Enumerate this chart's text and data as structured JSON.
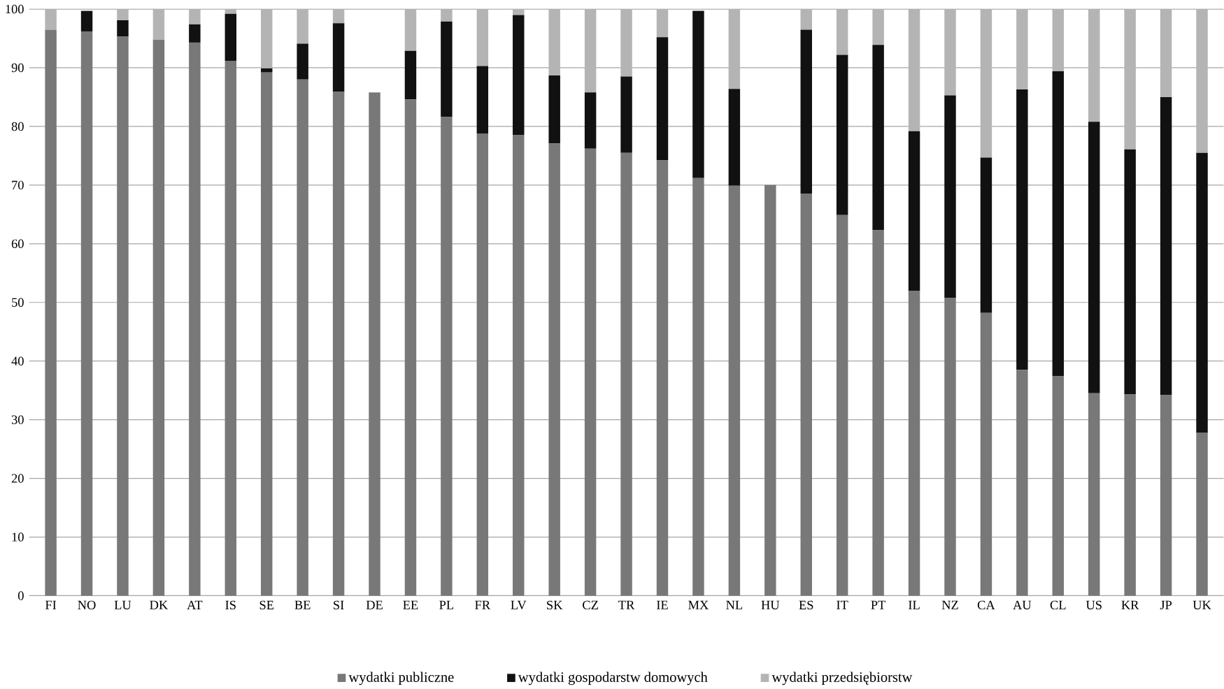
{
  "chart_data": {
    "type": "bar",
    "stacked": true,
    "categories": [
      "FI",
      "NO",
      "LU",
      "DK",
      "AT",
      "IS",
      "SE",
      "BE",
      "SI",
      "DE",
      "EE",
      "PL",
      "FR",
      "LV",
      "SK",
      "CZ",
      "TR",
      "IE",
      "MX",
      "NL",
      "HU",
      "ES",
      "IT",
      "PT",
      "IL",
      "NZ",
      "CA",
      "AU",
      "CL",
      "US",
      "KR",
      "JP",
      "UK"
    ],
    "series": [
      {
        "name": "wydatki publiczne",
        "color": "#787878",
        "values": [
          96.5,
          96.2,
          95.3,
          94.8,
          94.3,
          91.2,
          89.2,
          88.0,
          85.9,
          85.8,
          84.6,
          81.6,
          78.8,
          78.5,
          77.1,
          76.2,
          75.5,
          74.2,
          71.2,
          69.9,
          70.0,
          68.5,
          64.9,
          62.3,
          52.0,
          50.8,
          48.2,
          38.5,
          37.4,
          34.5,
          34.3,
          34.2,
          27.8
        ]
      },
      {
        "name": "wydatki gospodarstw domowych",
        "color": "#111111",
        "values": [
          0,
          3.5,
          2.8,
          0,
          3.1,
          8.0,
          0.7,
          6.1,
          11.7,
          0,
          8.3,
          16.3,
          11.5,
          20.5,
          11.6,
          9.6,
          13.0,
          21.0,
          28.5,
          16.5,
          0,
          28.0,
          27.3,
          31.6,
          27.2,
          34.5,
          26.5,
          47.8,
          52.0,
          46.3,
          41.8,
          50.8,
          47.7
        ]
      },
      {
        "name": "wydatki przedsiębiorstw",
        "color": "#b4b4b4",
        "values": [
          3.5,
          null,
          1.9,
          5.2,
          2.6,
          0.8,
          10.1,
          5.9,
          2.4,
          0,
          7.1,
          2.1,
          9.7,
          1.0,
          11.3,
          14.2,
          11.5,
          4.8,
          null,
          13.6,
          0,
          3.5,
          7.8,
          6.1,
          20.8,
          14.7,
          25.3,
          13.7,
          10.6,
          19.2,
          23.9,
          15.0,
          24.5
        ]
      }
    ],
    "ylim": [
      0,
      100
    ],
    "yticks": [
      0,
      10,
      20,
      30,
      40,
      50,
      60,
      70,
      80,
      90,
      100
    ],
    "grid": "y",
    "legend": "bottom"
  }
}
